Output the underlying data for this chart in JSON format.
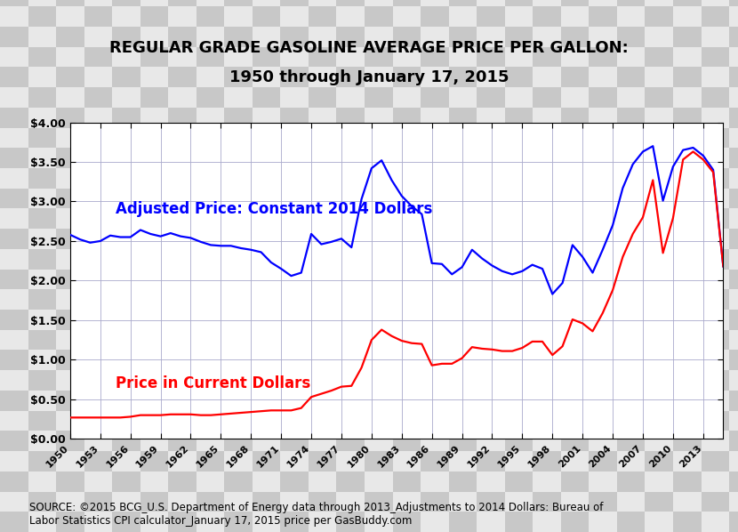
{
  "title_line1": "REGULAR GRADE GASOLINE AVERAGE PRICE PER GALLON:",
  "title_line2": "1950 through January 17, 2015",
  "source_text": "SOURCE: ©2015 BCG_U.S. Department of Energy data through 2013_Adjustments to 2014 Dollars: Bureau of\nLabor Statistics CPI calculator_January 17, 2015 price per GasBuddy.com",
  "blue_label": "Adjusted Price: Constant 2014 Dollars",
  "red_label": "Price in Current Dollars",
  "ylim": [
    0.0,
    4.0
  ],
  "yticks": [
    0.0,
    0.5,
    1.0,
    1.5,
    2.0,
    2.5,
    3.0,
    3.5,
    4.0
  ],
  "ytick_labels": [
    "$0.00",
    "$0.50",
    "$1.00",
    "$1.50",
    "$2.00",
    "$2.50",
    "$3.00",
    "$3.50",
    "$4.00"
  ],
  "xtick_labels": [
    "1950",
    "1953",
    "1956",
    "1959",
    "1962",
    "1965",
    "1968",
    "1971",
    "1974",
    "1977",
    "1980",
    "1983",
    "1986",
    "1989",
    "1992",
    "1995",
    "1998",
    "2001",
    "2004",
    "2007",
    "2010",
    "2013"
  ],
  "blue_color": "#0000FF",
  "red_color": "#FF0000",
  "title_fontsize": 13,
  "source_fontsize": 8.5,
  "label_fontsize": 12,
  "years": [
    1950,
    1951,
    1952,
    1953,
    1954,
    1955,
    1956,
    1957,
    1958,
    1959,
    1960,
    1961,
    1962,
    1963,
    1964,
    1965,
    1966,
    1967,
    1968,
    1969,
    1970,
    1971,
    1972,
    1973,
    1974,
    1975,
    1976,
    1977,
    1978,
    1979,
    1980,
    1981,
    1982,
    1983,
    1984,
    1985,
    1986,
    1987,
    1988,
    1989,
    1990,
    1991,
    1992,
    1993,
    1994,
    1995,
    1996,
    1997,
    1998,
    1999,
    2000,
    2001,
    2002,
    2003,
    2004,
    2005,
    2006,
    2007,
    2008,
    2009,
    2010,
    2011,
    2012,
    2013,
    2014,
    2015
  ],
  "current_price": [
    0.27,
    0.27,
    0.27,
    0.27,
    0.27,
    0.27,
    0.28,
    0.3,
    0.3,
    0.3,
    0.31,
    0.31,
    0.31,
    0.3,
    0.3,
    0.31,
    0.32,
    0.33,
    0.34,
    0.35,
    0.36,
    0.36,
    0.36,
    0.39,
    0.53,
    0.57,
    0.61,
    0.66,
    0.67,
    0.9,
    1.25,
    1.38,
    1.3,
    1.24,
    1.21,
    1.2,
    0.93,
    0.95,
    0.95,
    1.02,
    1.16,
    1.14,
    1.13,
    1.11,
    1.11,
    1.15,
    1.23,
    1.23,
    1.06,
    1.17,
    1.51,
    1.46,
    1.36,
    1.59,
    1.88,
    2.3,
    2.59,
    2.8,
    3.27,
    2.35,
    2.79,
    3.53,
    3.63,
    3.53,
    3.37,
    2.18
  ],
  "adjusted_price": [
    2.58,
    2.52,
    2.48,
    2.5,
    2.57,
    2.55,
    2.55,
    2.64,
    2.59,
    2.56,
    2.6,
    2.56,
    2.54,
    2.49,
    2.45,
    2.44,
    2.44,
    2.41,
    2.39,
    2.36,
    2.23,
    2.15,
    2.06,
    2.1,
    2.59,
    2.46,
    2.49,
    2.53,
    2.42,
    3.03,
    3.42,
    3.52,
    3.27,
    3.07,
    2.94,
    2.84,
    2.22,
    2.21,
    2.08,
    2.17,
    2.39,
    2.28,
    2.19,
    2.12,
    2.08,
    2.12,
    2.2,
    2.15,
    1.83,
    1.97,
    2.45,
    2.3,
    2.1,
    2.39,
    2.7,
    3.17,
    3.47,
    3.63,
    3.7,
    3.01,
    3.44,
    3.65,
    3.68,
    3.58,
    3.4,
    2.18
  ]
}
